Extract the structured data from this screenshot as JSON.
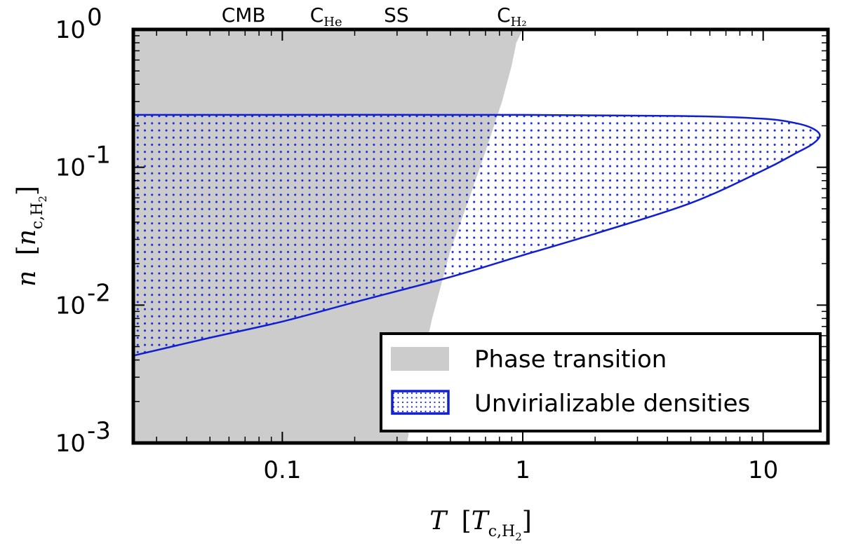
{
  "chart_data": {
    "type": "area",
    "xscale": "log",
    "yscale": "log",
    "xlim": [
      0.024,
      18.6
    ],
    "ylim": [
      0.001,
      1
    ],
    "xticks": [
      {
        "value": 0.1,
        "label": "0.1"
      },
      {
        "value": 1,
        "label": "1"
      },
      {
        "value": 10,
        "label": "10"
      }
    ],
    "yticks": [
      {
        "value": 0.001,
        "base": "10",
        "exp": "-3"
      },
      {
        "value": 0.01,
        "base": "10",
        "exp": "-2"
      },
      {
        "value": 0.1,
        "base": "10",
        "exp": "-1"
      },
      {
        "value": 1,
        "base": "10",
        "exp": "0"
      }
    ],
    "xlabel": {
      "var": "T",
      "unit_main": "T",
      "unit_sub": "c,H",
      "unit_sub2": "2"
    },
    "ylabel": {
      "var": "n",
      "unit_main": "n",
      "unit_sub": "c,H",
      "unit_sub2": "2"
    },
    "top_labels": [
      {
        "x": 0.069,
        "main": "CMB",
        "sub": ""
      },
      {
        "x": 0.152,
        "main": "C",
        "sub": "He"
      },
      {
        "x": 0.298,
        "main": "SS",
        "sub": ""
      },
      {
        "x": 0.9,
        "main": "C",
        "sub": "H₂"
      }
    ],
    "phase_boundary": [
      {
        "x": 0.33,
        "y": 0.001
      },
      {
        "x": 0.37,
        "y": 0.003
      },
      {
        "x": 0.42,
        "y": 0.008
      },
      {
        "x": 0.5,
        "y": 0.025
      },
      {
        "x": 0.6,
        "y": 0.06
      },
      {
        "x": 0.7,
        "y": 0.13
      },
      {
        "x": 0.82,
        "y": 0.3
      },
      {
        "x": 0.9,
        "y": 0.55
      },
      {
        "x": 0.94,
        "y": 0.8
      },
      {
        "x": 1.0,
        "y": 1.0
      }
    ],
    "unvirializable": {
      "upper": [
        {
          "x": 0.024,
          "y": 0.24
        },
        {
          "x": 1,
          "y": 0.24
        },
        {
          "x": 5,
          "y": 0.235
        },
        {
          "x": 10,
          "y": 0.225
        },
        {
          "x": 13.5,
          "y": 0.21
        },
        {
          "x": 16,
          "y": 0.192
        },
        {
          "x": 17.2,
          "y": 0.17
        }
      ],
      "lower": [
        {
          "x": 17.2,
          "y": 0.17
        },
        {
          "x": 16,
          "y": 0.147
        },
        {
          "x": 13.5,
          "y": 0.125
        },
        {
          "x": 10,
          "y": 0.095
        },
        {
          "x": 5,
          "y": 0.055
        },
        {
          "x": 2,
          "y": 0.033
        },
        {
          "x": 1,
          "y": 0.023
        },
        {
          "x": 0.5,
          "y": 0.016
        },
        {
          "x": 0.2,
          "y": 0.0105
        },
        {
          "x": 0.1,
          "y": 0.0076
        },
        {
          "x": 0.05,
          "y": 0.0058
        },
        {
          "x": 0.024,
          "y": 0.0043
        }
      ]
    },
    "legend": {
      "placement": "lower-right",
      "entries": [
        {
          "label": "Phase transition",
          "kind": "gray-fill"
        },
        {
          "label": "Unvirializable densities",
          "kind": "dotted-blue"
        }
      ]
    },
    "colors": {
      "phase_fill": "#cccccc",
      "curve": "#1020d0",
      "dots": "#1a2ad8",
      "frame": "#000000"
    }
  }
}
